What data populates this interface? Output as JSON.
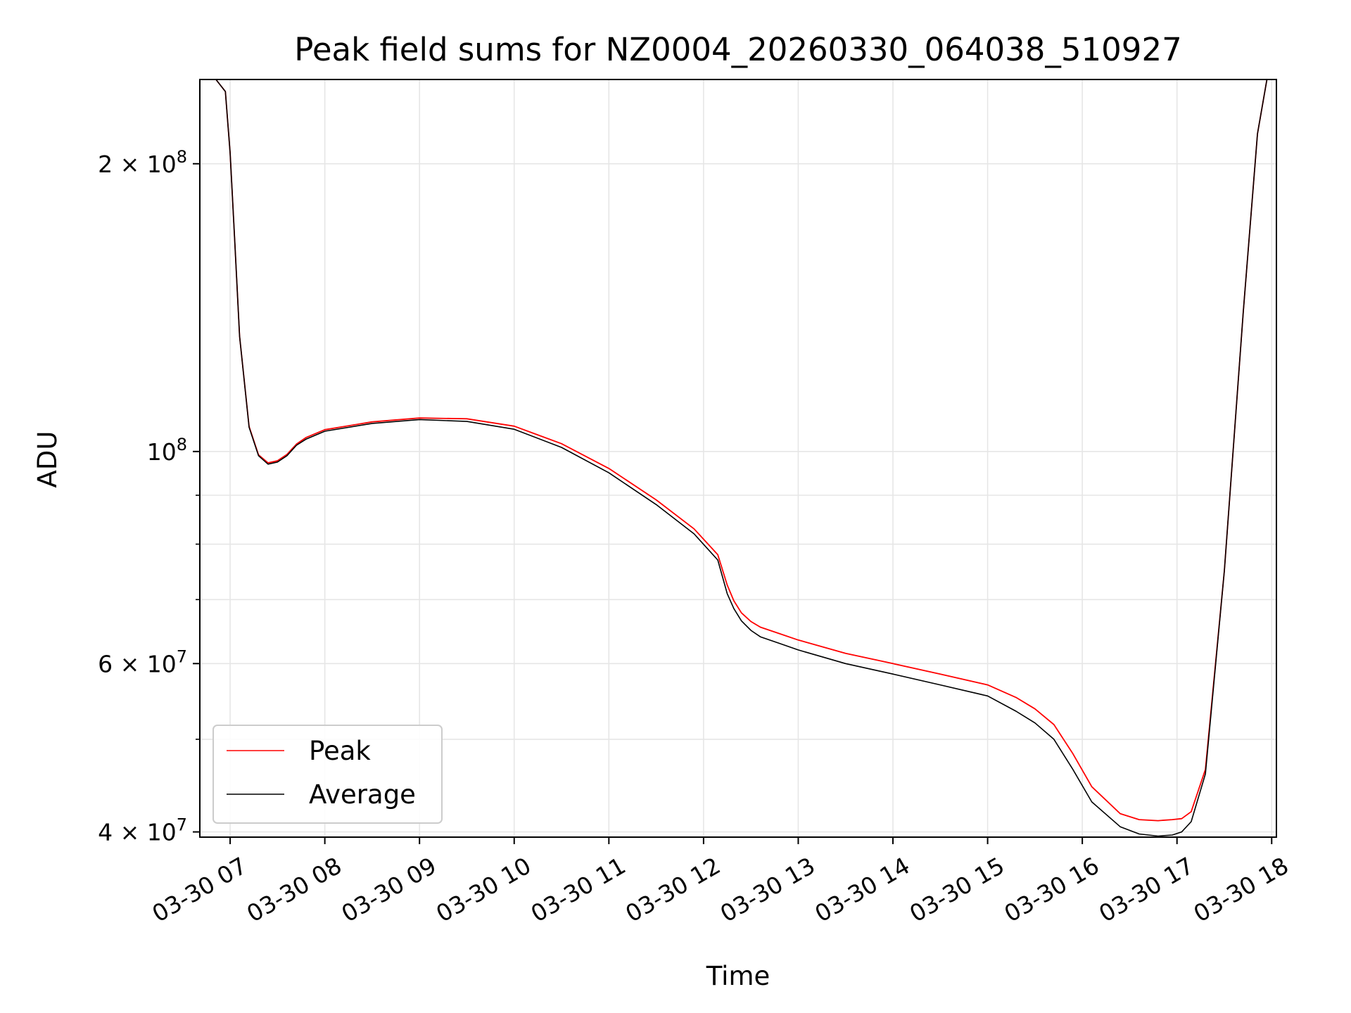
{
  "chart_data": {
    "type": "line",
    "title": "Peak field sums for NZ0004_20260330_064038_510927",
    "xlabel": "Time",
    "ylabel": "ADU",
    "yscale": "log",
    "xlim_hours": [
      6.68,
      18.05
    ],
    "ylim": [
      39500000,
      245000000
    ],
    "x_ticks": [
      {
        "hour": 7,
        "label": "03-30 07"
      },
      {
        "hour": 8,
        "label": "03-30 08"
      },
      {
        "hour": 9,
        "label": "03-30 09"
      },
      {
        "hour": 10,
        "label": "03-30 10"
      },
      {
        "hour": 11,
        "label": "03-30 11"
      },
      {
        "hour": 12,
        "label": "03-30 12"
      },
      {
        "hour": 13,
        "label": "03-30 13"
      },
      {
        "hour": 14,
        "label": "03-30 14"
      },
      {
        "hour": 15,
        "label": "03-30 15"
      },
      {
        "hour": 16,
        "label": "03-30 16"
      },
      {
        "hour": 17,
        "label": "03-30 17"
      },
      {
        "hour": 18,
        "label": "03-30 18"
      }
    ],
    "y_major_ticks": [
      {
        "value": 40000000,
        "base": "4",
        "exp": "7"
      },
      {
        "value": 60000000,
        "base": "6",
        "exp": "7"
      },
      {
        "value": 100000000,
        "base": "",
        "exp": "8"
      },
      {
        "value": 200000000,
        "base": "2",
        "exp": "8"
      }
    ],
    "y_minor_ticks": [
      50000000,
      70000000,
      80000000,
      90000000
    ],
    "grid": true,
    "legend": {
      "position": "lower-left",
      "entries": [
        {
          "label": "Peak",
          "color": "#ff0000"
        },
        {
          "label": "Average",
          "color": "#000000"
        }
      ]
    },
    "times_label": "×",
    "series": [
      {
        "name": "Average",
        "color": "#000000",
        "x": [
          6.7,
          6.85,
          6.95,
          7.0,
          7.05,
          7.1,
          7.2,
          7.3,
          7.4,
          7.5,
          7.6,
          7.7,
          7.8,
          8.0,
          8.5,
          9.0,
          9.5,
          10.0,
          10.5,
          11.0,
          11.5,
          11.9,
          12.15,
          12.25,
          12.32,
          12.4,
          12.5,
          12.6,
          12.8,
          13.0,
          13.5,
          14.0,
          14.5,
          15.0,
          15.3,
          15.5,
          15.7,
          15.9,
          16.1,
          16.4,
          16.6,
          16.8,
          16.95,
          17.05,
          17.15,
          17.3,
          17.5,
          17.7,
          17.85,
          17.95
        ],
        "y": [
          245000000,
          245000000,
          238000000,
          205000000,
          165000000,
          132000000,
          106000000,
          99000000,
          97000000,
          97500000,
          99000000,
          101500000,
          103000000,
          105000000,
          107000000,
          108000000,
          107500000,
          105500000,
          101000000,
          95000000,
          88000000,
          82000000,
          77000000,
          71000000,
          68500000,
          66500000,
          65000000,
          64000000,
          63000000,
          62000000,
          60000000,
          58500000,
          57000000,
          55500000,
          53500000,
          52000000,
          50000000,
          46500000,
          43000000,
          40500000,
          39800000,
          39600000,
          39700000,
          40000000,
          41000000,
          46000000,
          75000000,
          140000000,
          215000000,
          245000000
        ]
      },
      {
        "name": "Peak",
        "color": "#ff0000",
        "x": [
          6.7,
          6.85,
          6.95,
          7.0,
          7.05,
          7.1,
          7.2,
          7.3,
          7.4,
          7.5,
          7.6,
          7.7,
          7.8,
          8.0,
          8.5,
          9.0,
          9.5,
          10.0,
          10.5,
          11.0,
          11.5,
          11.9,
          12.15,
          12.25,
          12.32,
          12.4,
          12.5,
          12.6,
          12.8,
          13.0,
          13.5,
          14.0,
          14.5,
          15.0,
          15.3,
          15.5,
          15.7,
          15.9,
          16.1,
          16.4,
          16.6,
          16.8,
          16.95,
          17.05,
          17.15,
          17.3,
          17.5,
          17.7,
          17.85,
          17.95
        ],
        "y": [
          245000000,
          245000000,
          238000000,
          205000000,
          165000000,
          132000000,
          106200000,
          99200000,
          97300000,
          97800000,
          99300000,
          101800000,
          103400000,
          105400000,
          107400000,
          108400000,
          108200000,
          106300000,
          101900000,
          96000000,
          89000000,
          83000000,
          78000000,
          72500000,
          69800000,
          67800000,
          66400000,
          65500000,
          64500000,
          63500000,
          61500000,
          60000000,
          58500000,
          57000000,
          55300000,
          53800000,
          51800000,
          48300000,
          44600000,
          41800000,
          41200000,
          41100000,
          41200000,
          41300000,
          42000000,
          46500000,
          75000000,
          140000000,
          215000000,
          245000000
        ]
      }
    ]
  }
}
